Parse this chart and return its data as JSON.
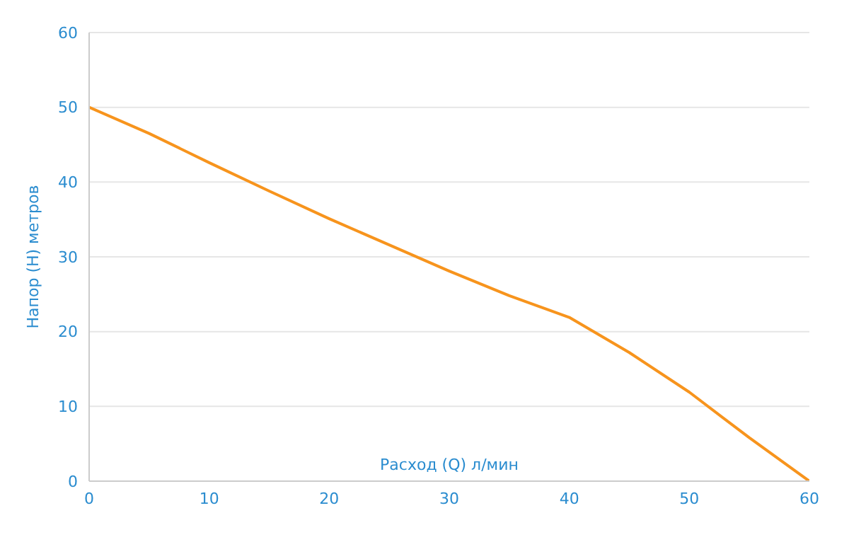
{
  "chart_data": {
    "type": "line",
    "xlabel": "Расход (Q) л/мин",
    "ylabel": "Напор (H) метров",
    "x": [
      0,
      5,
      10,
      15,
      20,
      25,
      30,
      35,
      40,
      45,
      50,
      55,
      60
    ],
    "series": [
      {
        "color": "#f7941d",
        "values": [
          50,
          46.5,
          42.6,
          38.8,
          35.1,
          31.6,
          28.1,
          24.8,
          21.9,
          17.2,
          11.9,
          5.8,
          0
        ]
      }
    ],
    "xlim": [
      0,
      60
    ],
    "xticks": [
      0,
      10,
      20,
      30,
      40,
      50,
      60
    ],
    "ylim": [
      0,
      60
    ],
    "yticks": [
      0,
      10,
      20,
      30,
      40,
      50,
      60
    ],
    "grid": "y",
    "legend": false,
    "marker": "none",
    "line_style": "solid"
  }
}
